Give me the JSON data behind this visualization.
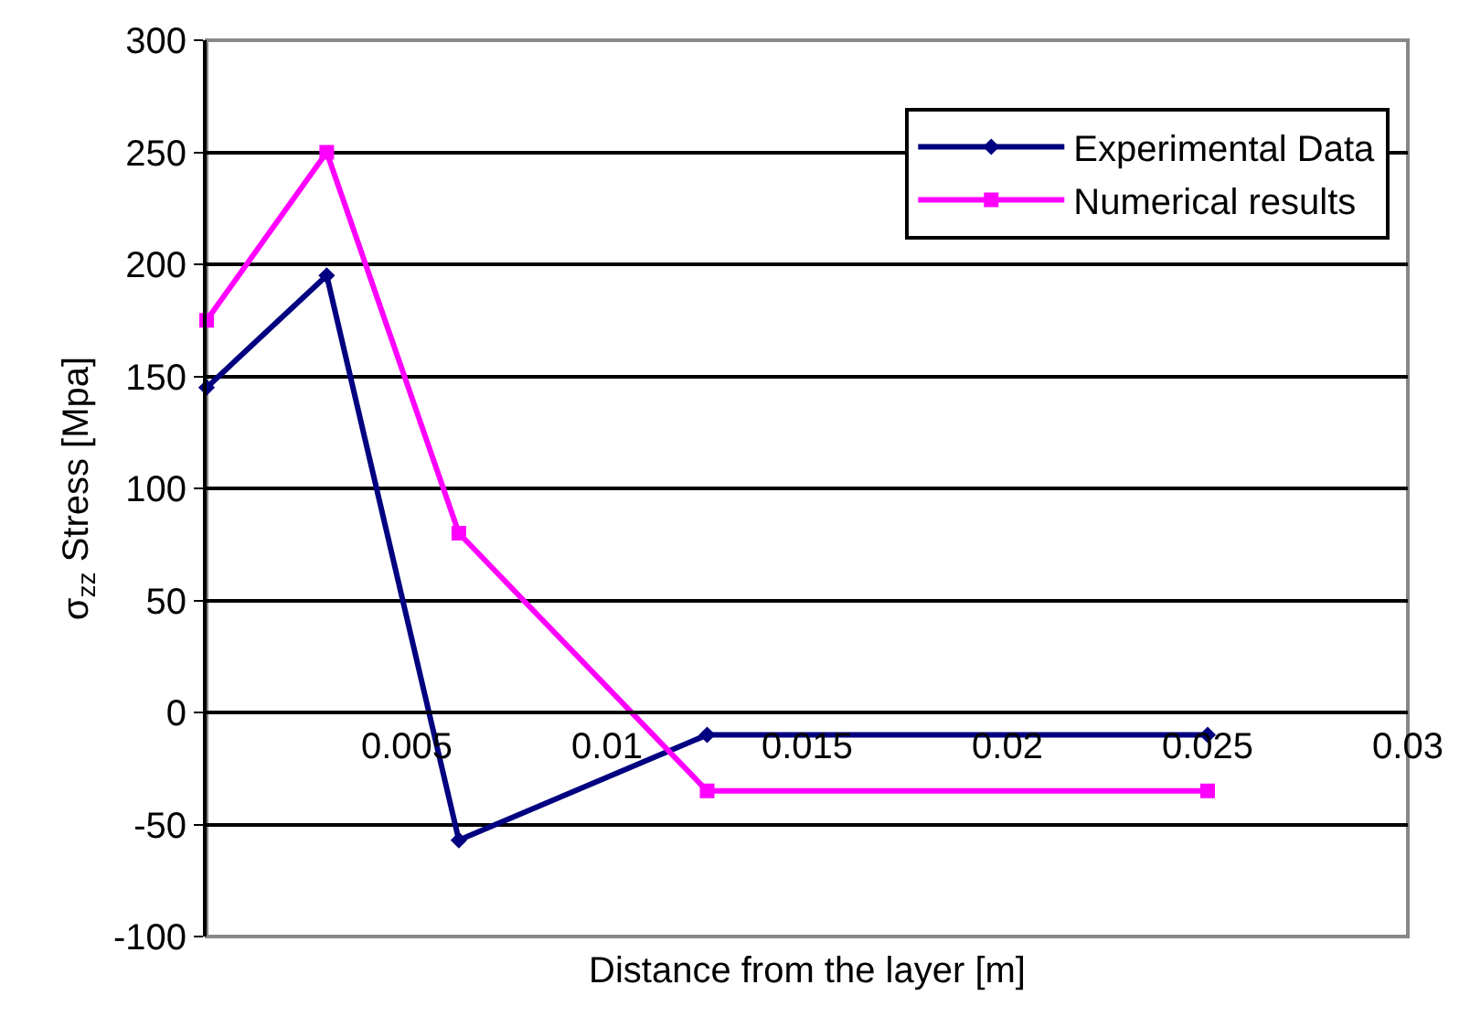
{
  "chart_data": {
    "type": "line",
    "xlabel": "Distance from the layer [m]",
    "ylabel": "σ$_{zz}$ Stress [Mpa]",
    "x": [
      0,
      0.003,
      0.0063,
      0.0125,
      0.025
    ],
    "series": [
      {
        "name": "Experimental Data",
        "color": "#000080",
        "marker": "diamond",
        "values": [
          145,
          195,
          -57,
          -10,
          -10
        ]
      },
      {
        "name": "Numerical results",
        "color": "#ff00ff",
        "marker": "square",
        "values": [
          175,
          250,
          80,
          -35,
          -35
        ]
      }
    ],
    "xlim": [
      0,
      0.03
    ],
    "xticks": [
      0.005,
      0.01,
      0.015,
      0.02,
      0.025,
      0.03
    ],
    "ylim": [
      -100,
      300
    ],
    "yticks": [
      -100,
      -50,
      0,
      50,
      100,
      150,
      200,
      250,
      300
    ],
    "grid": "y",
    "legend": "top right",
    "line_style": "solid"
  }
}
